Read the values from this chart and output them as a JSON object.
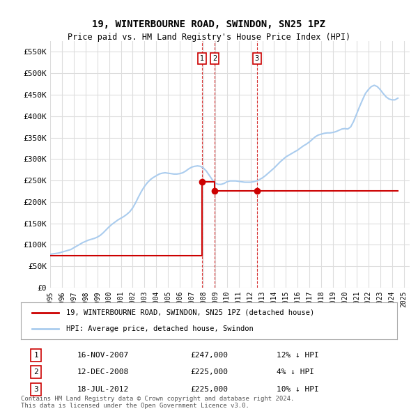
{
  "title": "19, WINTERBOURNE ROAD, SWINDON, SN25 1PZ",
  "subtitle": "Price paid vs. HM Land Registry's House Price Index (HPI)",
  "ylabel": "",
  "ylim": [
    0,
    575000
  ],
  "yticks": [
    0,
    50000,
    100000,
    150000,
    200000,
    250000,
    300000,
    350000,
    400000,
    450000,
    500000,
    550000
  ],
  "ytick_labels": [
    "£0",
    "£50K",
    "£100K",
    "£150K",
    "£200K",
    "£250K",
    "£300K",
    "£350K",
    "£400K",
    "£450K",
    "£500K",
    "£550K"
  ],
  "xlim_start": 1995.0,
  "xlim_end": 2025.5,
  "background_color": "#ffffff",
  "grid_color": "#dddddd",
  "hpi_line_color": "#aaccee",
  "price_line_color": "#cc0000",
  "transaction_marker_color": "#cc0000",
  "transaction_dashes_color": "#cc0000",
  "transactions": [
    {
      "date_num": 2007.88,
      "price": 247000,
      "label": "1",
      "date_str": "16-NOV-2007",
      "price_str": "£247,000",
      "hpi_pct": "12% ↓ HPI"
    },
    {
      "date_num": 2008.95,
      "price": 225000,
      "label": "2",
      "date_str": "12-DEC-2008",
      "price_str": "£225,000",
      "hpi_pct": "4% ↓ HPI"
    },
    {
      "date_num": 2012.54,
      "price": 225000,
      "label": "3",
      "date_str": "18-JUL-2012",
      "price_str": "£225,000",
      "hpi_pct": "10% ↓ HPI"
    }
  ],
  "legend_line1": "19, WINTERBOURNE ROAD, SWINDON, SN25 1PZ (detached house)",
  "legend_line2": "HPI: Average price, detached house, Swindon",
  "footer": "Contains HM Land Registry data © Crown copyright and database right 2024.\nThis data is licensed under the Open Government Licence v3.0.",
  "hpi_data_x": [
    1995.0,
    1995.25,
    1995.5,
    1995.75,
    1996.0,
    1996.25,
    1996.5,
    1996.75,
    1997.0,
    1997.25,
    1997.5,
    1997.75,
    1998.0,
    1998.25,
    1998.5,
    1998.75,
    1999.0,
    1999.25,
    1999.5,
    1999.75,
    2000.0,
    2000.25,
    2000.5,
    2000.75,
    2001.0,
    2001.25,
    2001.5,
    2001.75,
    2002.0,
    2002.25,
    2002.5,
    2002.75,
    2003.0,
    2003.25,
    2003.5,
    2003.75,
    2004.0,
    2004.25,
    2004.5,
    2004.75,
    2005.0,
    2005.25,
    2005.5,
    2005.75,
    2006.0,
    2006.25,
    2006.5,
    2006.75,
    2007.0,
    2007.25,
    2007.5,
    2007.75,
    2008.0,
    2008.25,
    2008.5,
    2008.75,
    2009.0,
    2009.25,
    2009.5,
    2009.75,
    2010.0,
    2010.25,
    2010.5,
    2010.75,
    2011.0,
    2011.25,
    2011.5,
    2011.75,
    2012.0,
    2012.25,
    2012.5,
    2012.75,
    2013.0,
    2013.25,
    2013.5,
    2013.75,
    2014.0,
    2014.25,
    2014.5,
    2014.75,
    2015.0,
    2015.25,
    2015.5,
    2015.75,
    2016.0,
    2016.25,
    2016.5,
    2016.75,
    2017.0,
    2017.25,
    2017.5,
    2017.75,
    2018.0,
    2018.25,
    2018.5,
    2018.75,
    2019.0,
    2019.25,
    2019.5,
    2019.75,
    2020.0,
    2020.25,
    2020.5,
    2020.75,
    2021.0,
    2021.25,
    2021.5,
    2021.75,
    2022.0,
    2022.25,
    2022.5,
    2022.75,
    2023.0,
    2023.25,
    2023.5,
    2023.75,
    2024.0,
    2024.25,
    2024.5
  ],
  "hpi_data_y": [
    78000,
    79000,
    80000,
    81000,
    83000,
    85000,
    87000,
    89000,
    93000,
    97000,
    101000,
    105000,
    108000,
    111000,
    113000,
    115000,
    118000,
    122000,
    128000,
    135000,
    142000,
    148000,
    153000,
    158000,
    162000,
    166000,
    171000,
    177000,
    186000,
    198000,
    212000,
    225000,
    236000,
    245000,
    252000,
    257000,
    261000,
    265000,
    267000,
    268000,
    267000,
    266000,
    265000,
    265000,
    266000,
    268000,
    272000,
    277000,
    281000,
    283000,
    284000,
    283000,
    279000,
    272000,
    262000,
    252000,
    244000,
    241000,
    241000,
    243000,
    247000,
    249000,
    249000,
    249000,
    248000,
    247000,
    246000,
    246000,
    246000,
    247000,
    249000,
    252000,
    256000,
    261000,
    267000,
    273000,
    279000,
    286000,
    293000,
    299000,
    305000,
    309000,
    313000,
    317000,
    321000,
    326000,
    331000,
    335000,
    340000,
    346000,
    352000,
    356000,
    358000,
    360000,
    361000,
    361000,
    362000,
    364000,
    367000,
    370000,
    371000,
    370000,
    375000,
    388000,
    405000,
    422000,
    438000,
    453000,
    462000,
    469000,
    472000,
    469000,
    462000,
    453000,
    445000,
    440000,
    438000,
    438000,
    442000
  ],
  "price_data_x": [
    1995.0,
    2007.88,
    2007.88,
    2008.95,
    2008.95,
    2012.54,
    2012.54,
    2024.5
  ],
  "price_data_y": [
    75000,
    75000,
    247000,
    247000,
    225000,
    225000,
    225000,
    225000
  ]
}
